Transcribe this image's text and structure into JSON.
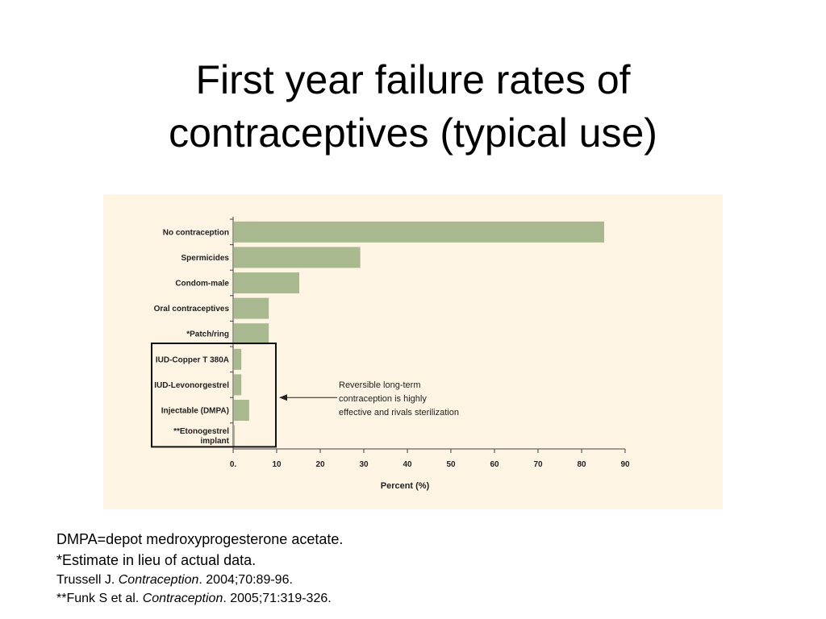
{
  "slide": {
    "title_line1": "First year failure rates of",
    "title_line2": "contraceptives (typical use)"
  },
  "chart_data": {
    "type": "bar",
    "orientation": "horizontal",
    "categories": [
      "No contraception",
      "Spermicides",
      "Condom-male",
      "Oral contraceptives",
      "*Patch/ring",
      "IUD-Copper T 380A",
      "IUD-Levonorgestrel",
      "Injectable (DMPA)",
      "**Etonogestrel implant"
    ],
    "values": [
      85,
      29,
      15,
      8,
      8,
      1.7,
      1.7,
      3.5,
      0.2
    ],
    "xlabel": "Percent (%)",
    "xlim": [
      0,
      90
    ],
    "xticks": [
      "0.",
      "10",
      "20",
      "30",
      "40",
      "50",
      "60",
      "70",
      "80",
      "90"
    ],
    "bar_color": "#a9b98f",
    "highlight_box_categories": [
      5,
      8
    ],
    "annotation": {
      "lines": [
        "Reversible long-term",
        "contraception is highly",
        "effective and rivals sterilization"
      ]
    }
  },
  "footnotes": {
    "line1": "DMPA=depot medroxyprogesterone acetate.",
    "line2": "*Estimate in lieu of actual data.",
    "line3_a": "Trussell J. ",
    "line3_journal": "Contraception",
    "line3_b": ". 2004;70:89-96.",
    "line4_a": "**Funk S et al. ",
    "line4_journal": "Contraception",
    "line4_b": ". 2005;71:319-326."
  }
}
